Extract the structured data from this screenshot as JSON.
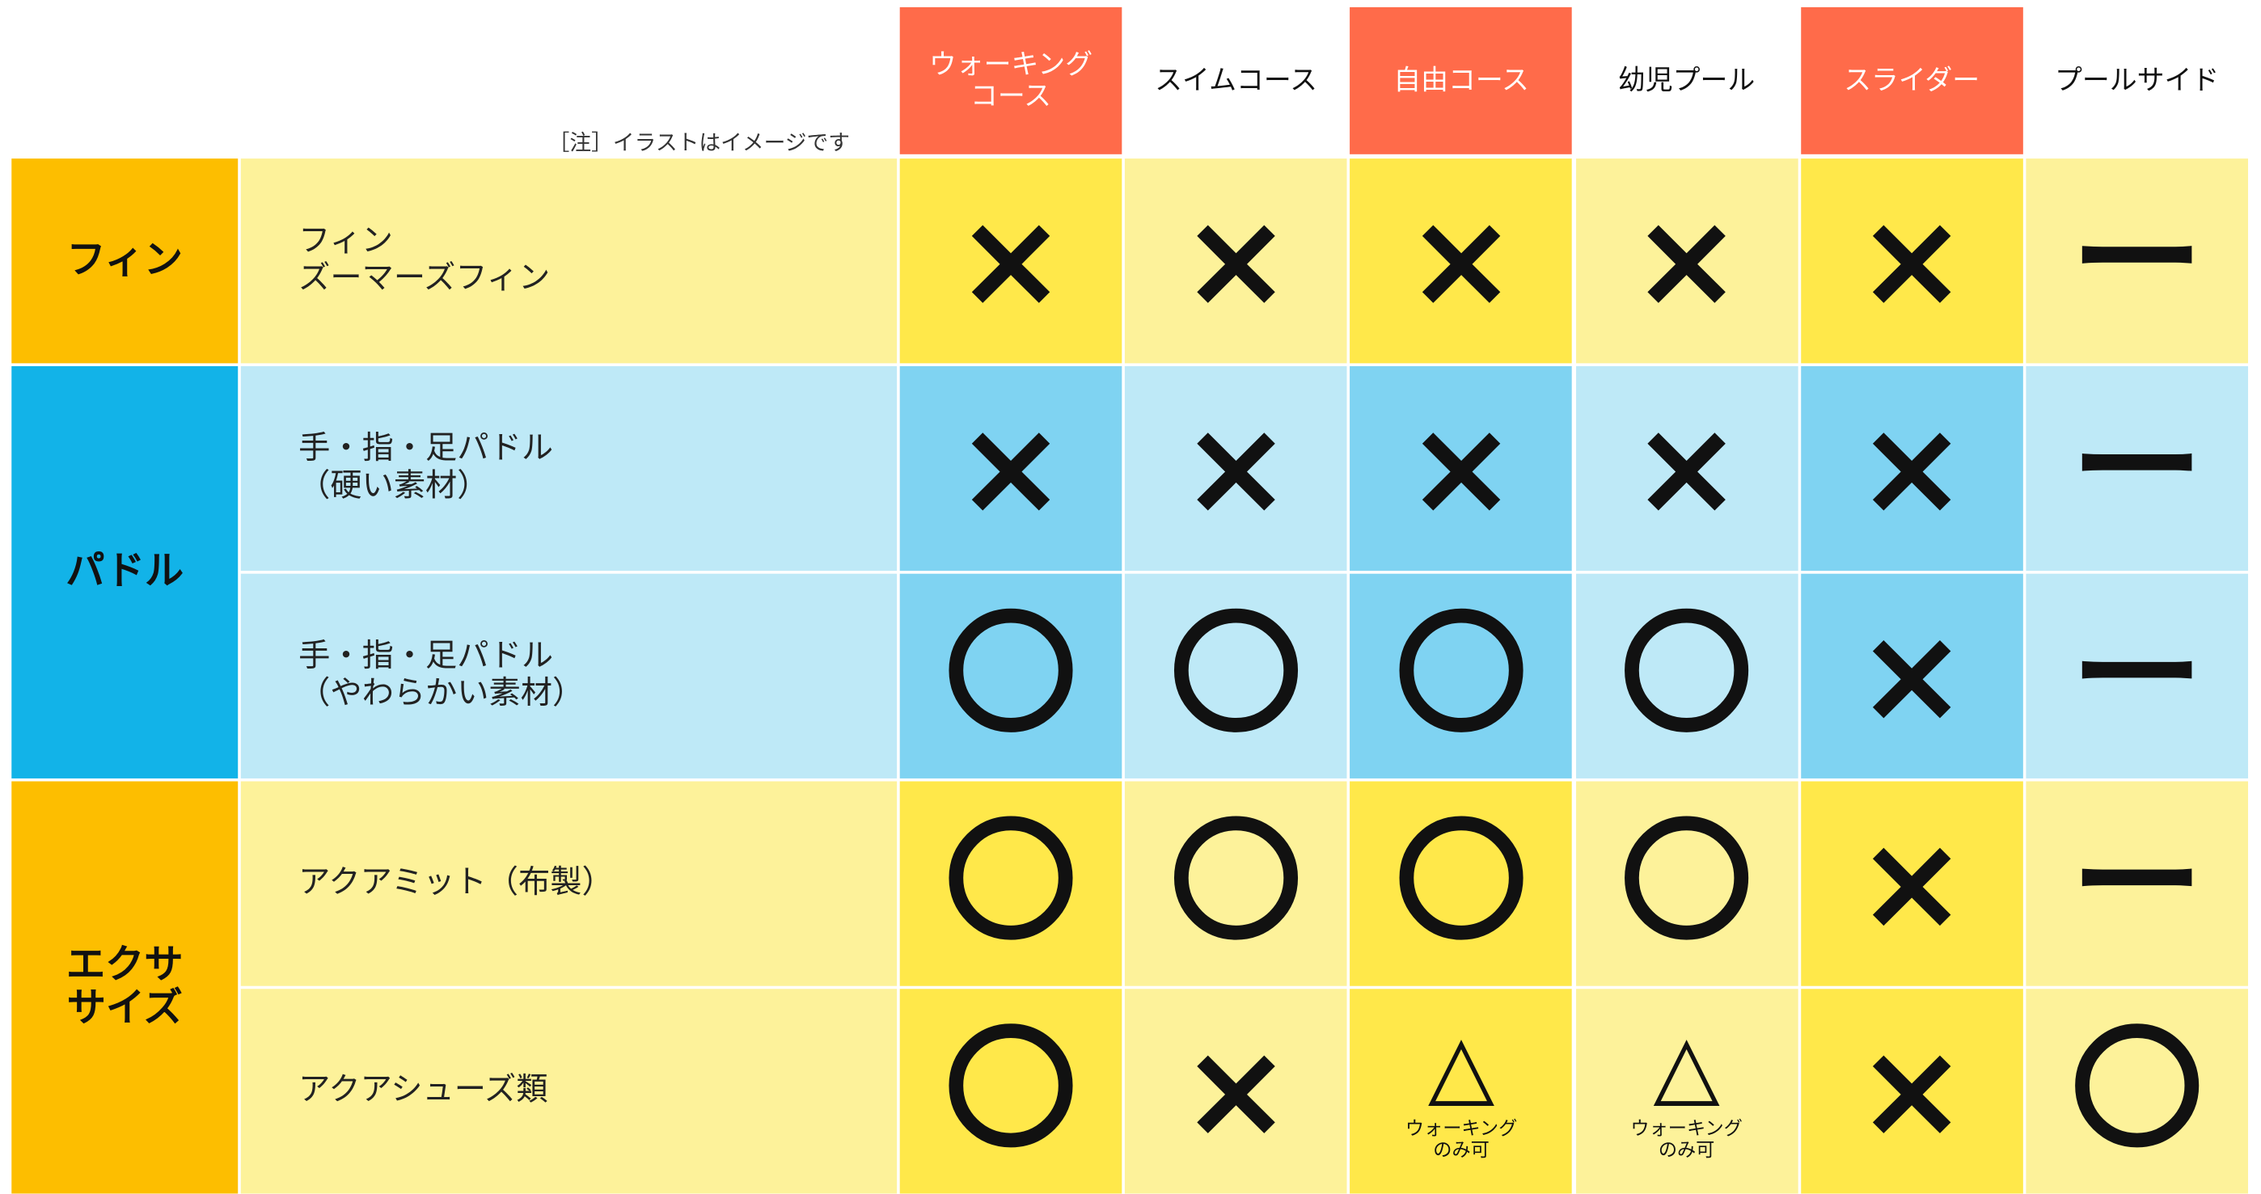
{
  "header": {
    "note": "［注］イラストはイメージです",
    "columns": [
      "ウォーキング\nコース",
      "スイムコース",
      "自由コース",
      "幼児プール",
      "スライダー",
      "プールサイド"
    ]
  },
  "groups": [
    {
      "label": "フィン",
      "items": [
        {
          "label": "フィン\nズーマーズフィン",
          "cells": [
            {
              "mark": "×"
            },
            {
              "mark": "×"
            },
            {
              "mark": "×"
            },
            {
              "mark": "×"
            },
            {
              "mark": "×"
            },
            {
              "mark": "ー"
            }
          ]
        }
      ]
    },
    {
      "label": "パドル",
      "items": [
        {
          "label": "手・指・足パドル\n（硬い素材）",
          "cells": [
            {
              "mark": "×"
            },
            {
              "mark": "×"
            },
            {
              "mark": "×"
            },
            {
              "mark": "×"
            },
            {
              "mark": "×"
            },
            {
              "mark": "ー"
            }
          ]
        },
        {
          "label": "手・指・足パドル\n（やわらかい素材）",
          "cells": [
            {
              "mark": "〇"
            },
            {
              "mark": "〇"
            },
            {
              "mark": "〇"
            },
            {
              "mark": "〇"
            },
            {
              "mark": "×"
            },
            {
              "mark": "ー"
            }
          ]
        }
      ]
    },
    {
      "label": "エクサ\nサイズ",
      "items": [
        {
          "label": "アクアミット（布製）",
          "cells": [
            {
              "mark": "〇"
            },
            {
              "mark": "〇"
            },
            {
              "mark": "〇"
            },
            {
              "mark": "〇"
            },
            {
              "mark": "×"
            },
            {
              "mark": "ー"
            }
          ]
        },
        {
          "label": "アクアシューズ類",
          "cells": [
            {
              "mark": "〇"
            },
            {
              "mark": "×"
            },
            {
              "mark": "△",
              "note": "ウォーキング\nのみ可"
            },
            {
              "mark": "△",
              "note": "ウォーキング\nのみ可"
            },
            {
              "mark": "×"
            },
            {
              "mark": "〇"
            }
          ]
        }
      ]
    }
  ]
}
